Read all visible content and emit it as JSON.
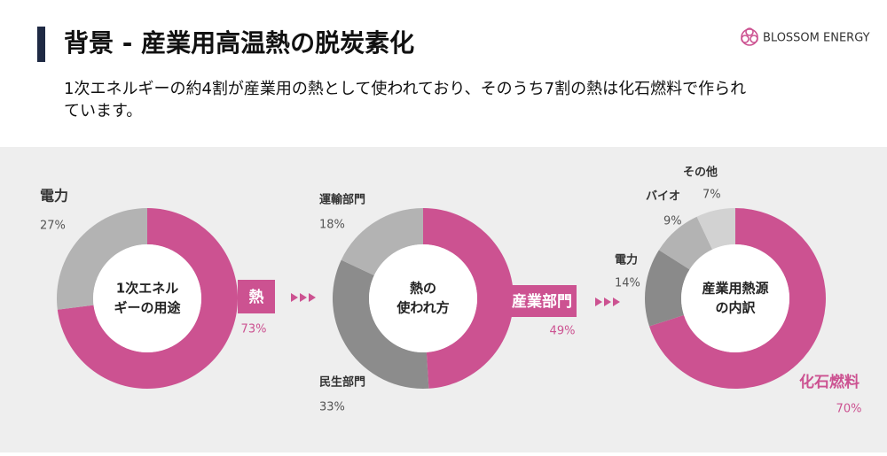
{
  "header": {
    "title": "背景 - 産業用高温熱の脱炭素化",
    "brand": "BLOSSOM ENERGY",
    "subtitle": [
      "1次エネルギーの約4割が産業用の熱として使われており、そのうち7割の熱は化石燃料で作られ",
      "ています。"
    ]
  },
  "chart_data": [
    {
      "type": "pie",
      "center_label": [
        "1次エネル",
        "ギーの用途"
      ],
      "categories": [
        "熱",
        "電力"
      ],
      "values": [
        73,
        27
      ],
      "value_labels": [
        "73%",
        "27%"
      ],
      "colors": [
        "#cc5291",
        "#b3b3b3"
      ]
    },
    {
      "type": "pie",
      "center_label": [
        "熱の",
        "使われ方"
      ],
      "categories": [
        "産業部門",
        "民生部門",
        "運輸部門"
      ],
      "values": [
        49,
        33,
        18
      ],
      "value_labels": [
        "49%",
        "33%",
        "18%"
      ],
      "colors": [
        "#cc5291",
        "#8c8c8c",
        "#b3b3b3"
      ]
    },
    {
      "type": "pie",
      "center_label": [
        "産業用熱源",
        "の内訳"
      ],
      "categories": [
        "化石燃料",
        "電力",
        "バイオ",
        "その他"
      ],
      "values": [
        70,
        14,
        9,
        7
      ],
      "value_labels": [
        "70%",
        "14%",
        "9%",
        "7%"
      ],
      "colors": [
        "#cc5291",
        "#8a8a8a",
        "#b3b3b3",
        "#d2d2d2"
      ]
    }
  ]
}
